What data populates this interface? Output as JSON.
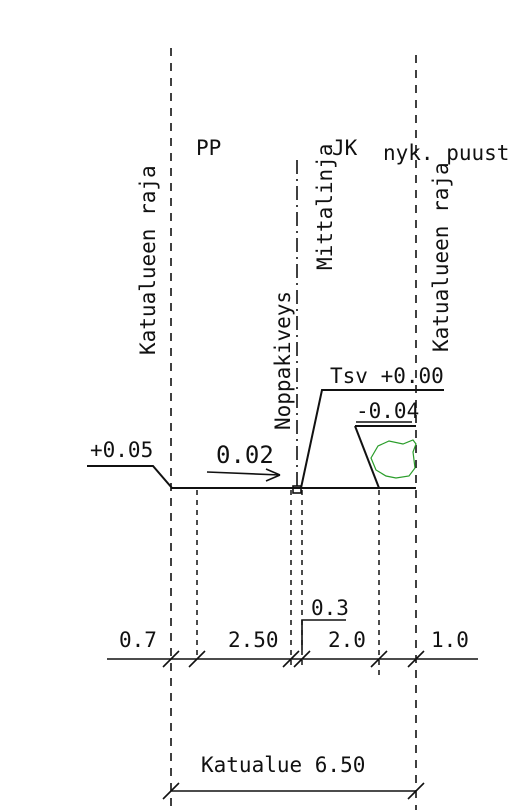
{
  "labels": {
    "pp": "PP",
    "jk": "JK",
    "nyk_puusto": "nyk. puusto",
    "katualueen_raja_left": "Katualueen raja",
    "katualueen_raja_right": "Katualueen raja",
    "mittalinja": "Mittalinja",
    "noppakiveys": "Noppakiveys",
    "tsv": "Tsv +0.00",
    "minus_004": "-0.04",
    "plus_005": "+0.05",
    "slope": "0.02"
  },
  "dimensions": {
    "d1": "0.7",
    "d2": "2.50",
    "d3": "2.0",
    "d4": "1.0",
    "d5": "0.3",
    "total": "Katualue 6.50"
  },
  "colors": {
    "line": "#111111",
    "vegetation": "#2a9d2a",
    "background": "#ffffff"
  }
}
